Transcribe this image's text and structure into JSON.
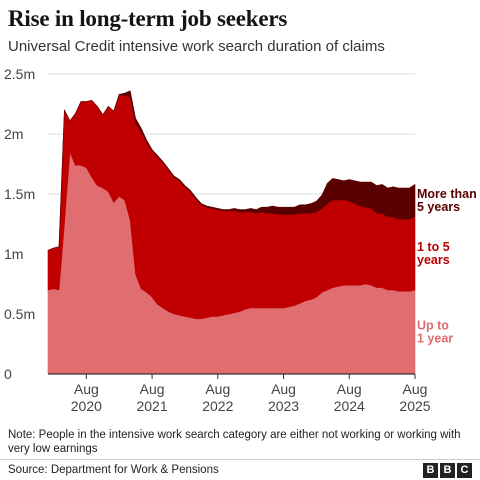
{
  "chart_data": {
    "type": "area",
    "stacked": true,
    "title": "Rise in long-term job seekers",
    "subtitle": "Universal Credit intensive work search duration of claims",
    "ylim": [
      0,
      2500000
    ],
    "y_ticks": [
      {
        "value": 0,
        "label": "0"
      },
      {
        "value": 500000,
        "label": "0.5m"
      },
      {
        "value": 1000000,
        "label": "1m"
      },
      {
        "value": 1500000,
        "label": "1.5m"
      },
      {
        "value": 2000000,
        "label": "2m"
      },
      {
        "value": 2500000,
        "label": "2.5m"
      }
    ],
    "x_ticks": [
      {
        "date": "2020-08",
        "line1": "Aug",
        "line2": "2020"
      },
      {
        "date": "2021-08",
        "line1": "Aug",
        "line2": "2021"
      },
      {
        "date": "2022-08",
        "line1": "Aug",
        "line2": "2022"
      },
      {
        "date": "2023-08",
        "line1": "Aug",
        "line2": "2023"
      },
      {
        "date": "2024-08",
        "line1": "Aug",
        "line2": "2024"
      },
      {
        "date": "2025-08",
        "line1": "Aug",
        "line2": "2025"
      }
    ],
    "x": [
      "2020-01",
      "2020-02",
      "2020-03",
      "2020-04",
      "2020-05",
      "2020-06",
      "2020-07",
      "2020-08",
      "2020-09",
      "2020-10",
      "2020-11",
      "2020-12",
      "2021-01",
      "2021-02",
      "2021-03",
      "2021-04",
      "2021-05",
      "2021-06",
      "2021-07",
      "2021-08",
      "2021-09",
      "2021-10",
      "2021-11",
      "2021-12",
      "2022-01",
      "2022-02",
      "2022-03",
      "2022-04",
      "2022-05",
      "2022-06",
      "2022-07",
      "2022-08",
      "2022-09",
      "2022-10",
      "2022-11",
      "2022-12",
      "2023-01",
      "2023-02",
      "2023-03",
      "2023-04",
      "2023-05",
      "2023-06",
      "2023-07",
      "2023-08",
      "2023-09",
      "2023-10",
      "2023-11",
      "2023-12",
      "2024-01",
      "2024-02",
      "2024-03",
      "2024-04",
      "2024-05",
      "2024-06",
      "2024-07",
      "2024-08",
      "2024-09",
      "2024-10",
      "2024-11",
      "2024-12",
      "2025-01",
      "2025-02",
      "2025-03",
      "2025-04",
      "2025-05",
      "2025-06",
      "2025-07",
      "2025-08"
    ],
    "series": [
      {
        "name": "Up to 1 year",
        "label_lines": [
          "Up to",
          "1 year"
        ],
        "color": "#e06d70",
        "label_color": "#e06d70",
        "values": [
          700000,
          710000,
          700000,
          1250000,
          1850000,
          1740000,
          1740000,
          1720000,
          1640000,
          1570000,
          1550000,
          1520000,
          1430000,
          1480000,
          1450000,
          1280000,
          830000,
          710000,
          680000,
          640000,
          580000,
          550000,
          520000,
          500000,
          490000,
          480000,
          470000,
          460000,
          460000,
          470000,
          480000,
          480000,
          490000,
          500000,
          510000,
          520000,
          540000,
          550000,
          550000,
          550000,
          550000,
          550000,
          550000,
          550000,
          560000,
          570000,
          590000,
          610000,
          620000,
          640000,
          680000,
          700000,
          720000,
          730000,
          740000,
          740000,
          740000,
          740000,
          750000,
          740000,
          720000,
          720000,
          700000,
          700000,
          690000,
          690000,
          690000,
          700000
        ]
      },
      {
        "name": "1 to 5 years",
        "label_lines": [
          "1 to 5",
          "years"
        ],
        "color": "#c00000",
        "label_color": "#b80000",
        "values": [
          330000,
          340000,
          360000,
          950000,
          260000,
          430000,
          530000,
          550000,
          640000,
          660000,
          610000,
          710000,
          760000,
          850000,
          870000,
          1030000,
          1260000,
          1310000,
          1250000,
          1220000,
          1230000,
          1210000,
          1180000,
          1140000,
          1120000,
          1080000,
          1050000,
          1000000,
          950000,
          920000,
          900000,
          890000,
          870000,
          860000,
          850000,
          830000,
          810000,
          800000,
          790000,
          800000,
          790000,
          790000,
          780000,
          780000,
          770000,
          760000,
          750000,
          730000,
          720000,
          710000,
          700000,
          720000,
          730000,
          720000,
          710000,
          700000,
          680000,
          660000,
          640000,
          640000,
          620000,
          620000,
          610000,
          610000,
          600000,
          600000,
          600000,
          610000
        ]
      },
      {
        "name": "More than 5 years",
        "label_lines": [
          "More than",
          "5 years"
        ],
        "color": "#5a0000",
        "label_color": "#5a0000",
        "values": [
          0,
          0,
          0,
          0,
          0,
          0,
          0,
          0,
          0,
          0,
          0,
          0,
          0,
          0,
          20000,
          50000,
          40000,
          30000,
          20000,
          10000,
          10000,
          10000,
          10000,
          10000,
          10000,
          10000,
          10000,
          10000,
          10000,
          10000,
          10000,
          10000,
          10000,
          10000,
          20000,
          20000,
          20000,
          30000,
          30000,
          40000,
          50000,
          60000,
          60000,
          60000,
          60000,
          60000,
          70000,
          70000,
          80000,
          90000,
          110000,
          170000,
          180000,
          170000,
          160000,
          180000,
          190000,
          200000,
          210000,
          220000,
          230000,
          240000,
          240000,
          250000,
          260000,
          260000,
          260000,
          270000
        ]
      }
    ],
    "grid": true,
    "legend": "right"
  },
  "footer": {
    "note": "Note: People in the intensive work search category are either not working or working with very low earnings",
    "source": "Source: Department for Work & Pensions",
    "logo_letters": [
      "B",
      "B",
      "C"
    ]
  }
}
